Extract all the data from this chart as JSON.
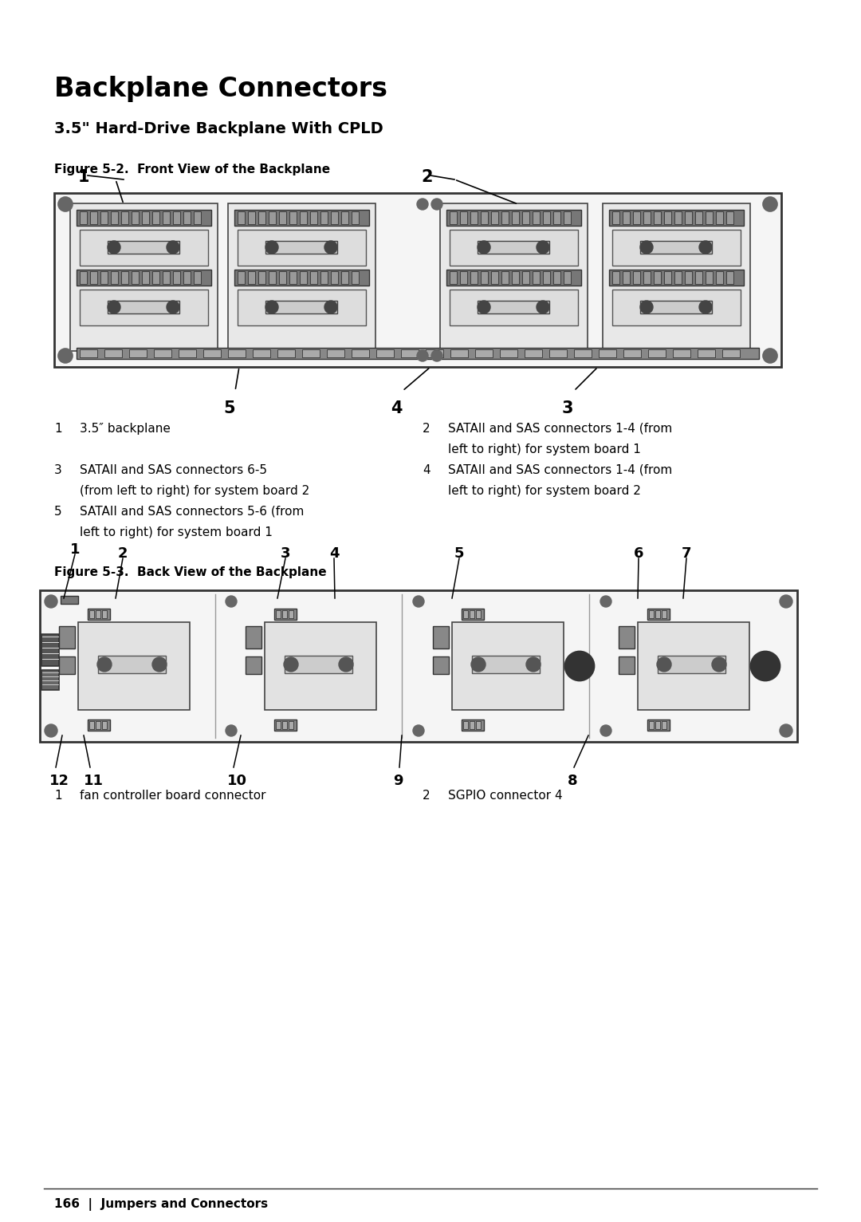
{
  "page_bg": "#ffffff",
  "title": "Backplane Connectors",
  "subtitle": "3.5\" Hard-Drive Backplane With CPLD",
  "fig2_label": "Figure 5-2.  Front View of the Backplane",
  "fig3_label": "Figure 5-3.  Back View of the Backplane",
  "footer": "166  |  Jumpers and Connectors",
  "legend1_left": [
    [
      "1",
      "3.5″ backplane"
    ],
    [
      "3",
      "SATAII and SAS connectors 6-5\n(from left to right) for system board 2"
    ],
    [
      "5",
      "SATAII and SAS connectors 5-6 (from\nleft to right) for system board 1"
    ]
  ],
  "legend1_right": [
    [
      "2",
      "SATAII and SAS connectors 1-4 (from\nleft to right) for system board 1"
    ],
    [
      "4",
      "SATAII and SAS connectors 1-4 (from\nleft to right) for system board 2"
    ]
  ],
  "legend2_left": [
    [
      "1",
      "fan controller board connector"
    ]
  ],
  "legend2_right": [
    [
      "2",
      "SGPIO connector 4"
    ]
  ]
}
